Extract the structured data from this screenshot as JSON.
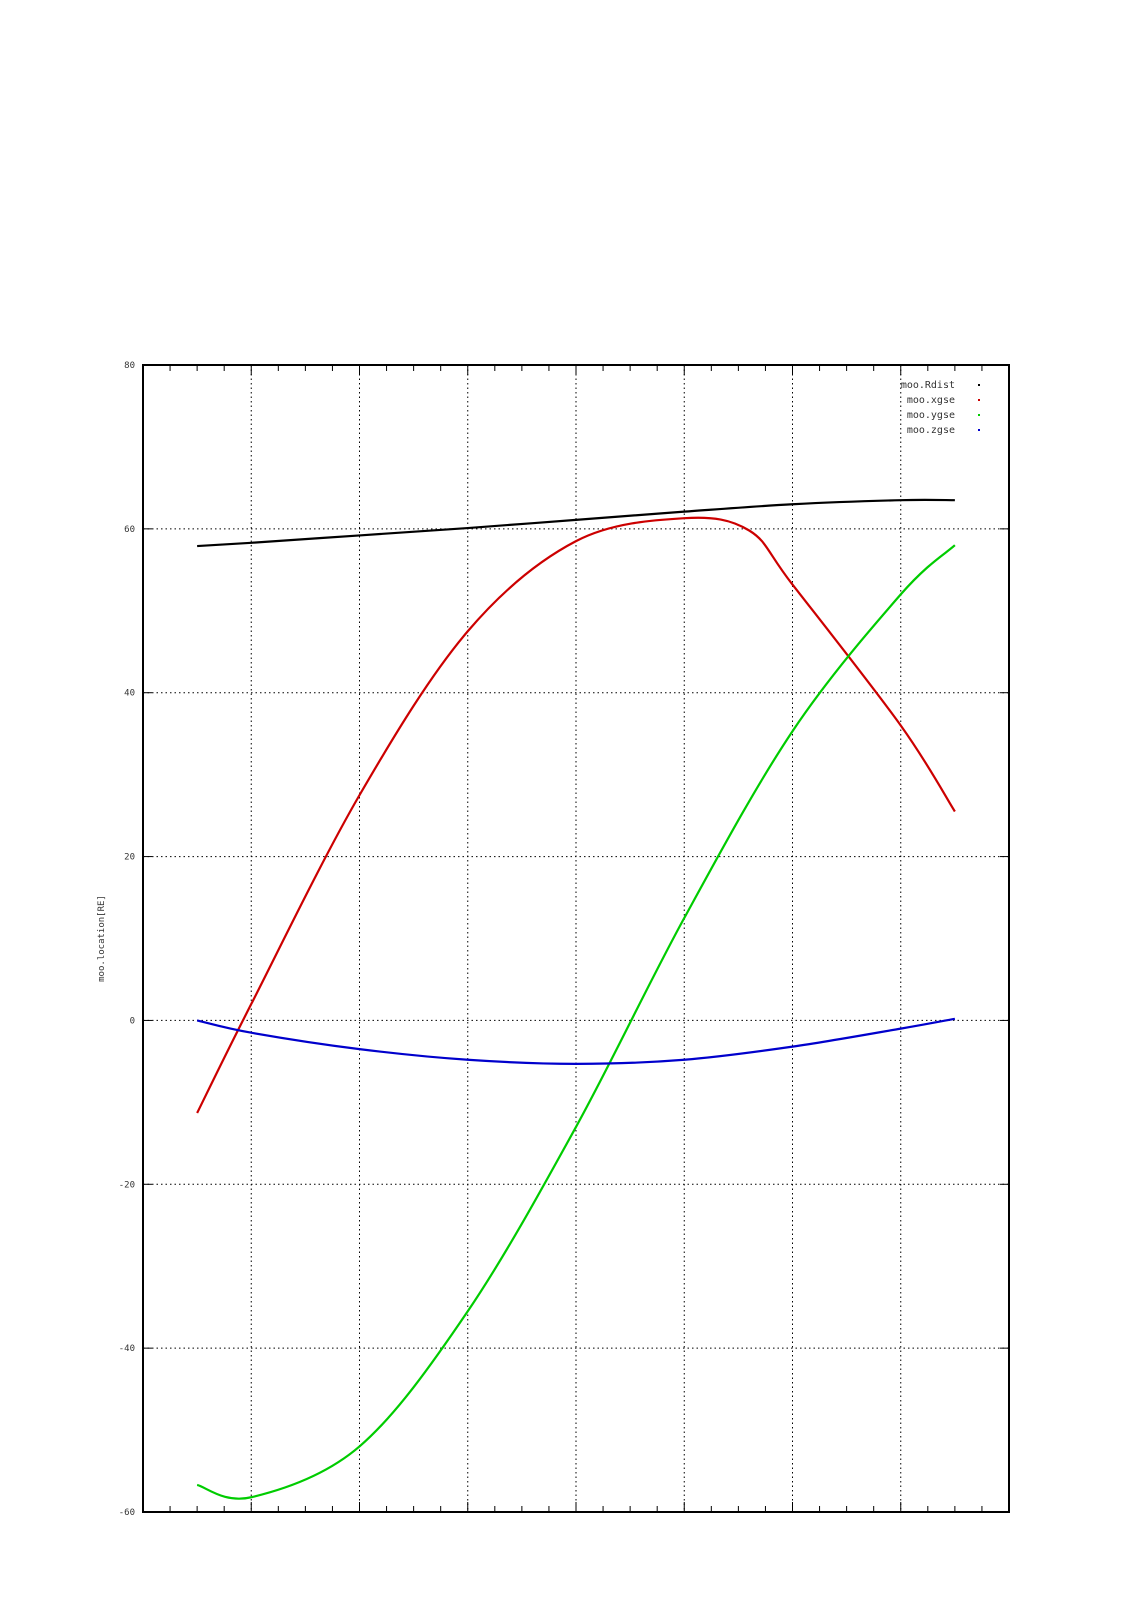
{
  "chart_data": {
    "type": "line",
    "title": "",
    "xlabel": "",
    "ylabel": "moo.location[RE]",
    "xlim": [
      0,
      8
    ],
    "ylim": [
      -60,
      80
    ],
    "yticks": [
      -60,
      -40,
      -20,
      0,
      20,
      40,
      60,
      80
    ],
    "grid": true,
    "legend_position": "top-right",
    "series": [
      {
        "name": "moo.Rdist",
        "color": "#000000",
        "x": [
          0.5,
          1,
          2,
          3,
          4,
          5,
          6,
          7,
          7.5
        ],
        "y": [
          57.9,
          58.3,
          59.2,
          60.1,
          61.1,
          62.1,
          63.0,
          63.5,
          63.5
        ]
      },
      {
        "name": "moo.xgse",
        "color": "#cc0000",
        "x": [
          0.5,
          1,
          2,
          3,
          4,
          5,
          5.6,
          6,
          7,
          7.5
        ],
        "y": [
          -11.3,
          2.0,
          27.5,
          47.5,
          58.5,
          61.3,
          59.8,
          53.2,
          36.0,
          25.5
        ]
      },
      {
        "name": "moo.ygse",
        "color": "#00cc00",
        "x": [
          0.5,
          1,
          2,
          3,
          4,
          5,
          6,
          7,
          7.5
        ],
        "y": [
          -56.7,
          -58.2,
          -52.0,
          -35.5,
          -13.0,
          12.5,
          35.3,
          52.0,
          58.0
        ]
      },
      {
        "name": "moo.zgse",
        "color": "#0000cc",
        "x": [
          0.5,
          1,
          2,
          3,
          4,
          5,
          6,
          7,
          7.5
        ],
        "y": [
          0.0,
          -1.5,
          -3.5,
          -4.8,
          -5.3,
          -4.8,
          -3.2,
          -1.0,
          0.2
        ]
      }
    ]
  }
}
